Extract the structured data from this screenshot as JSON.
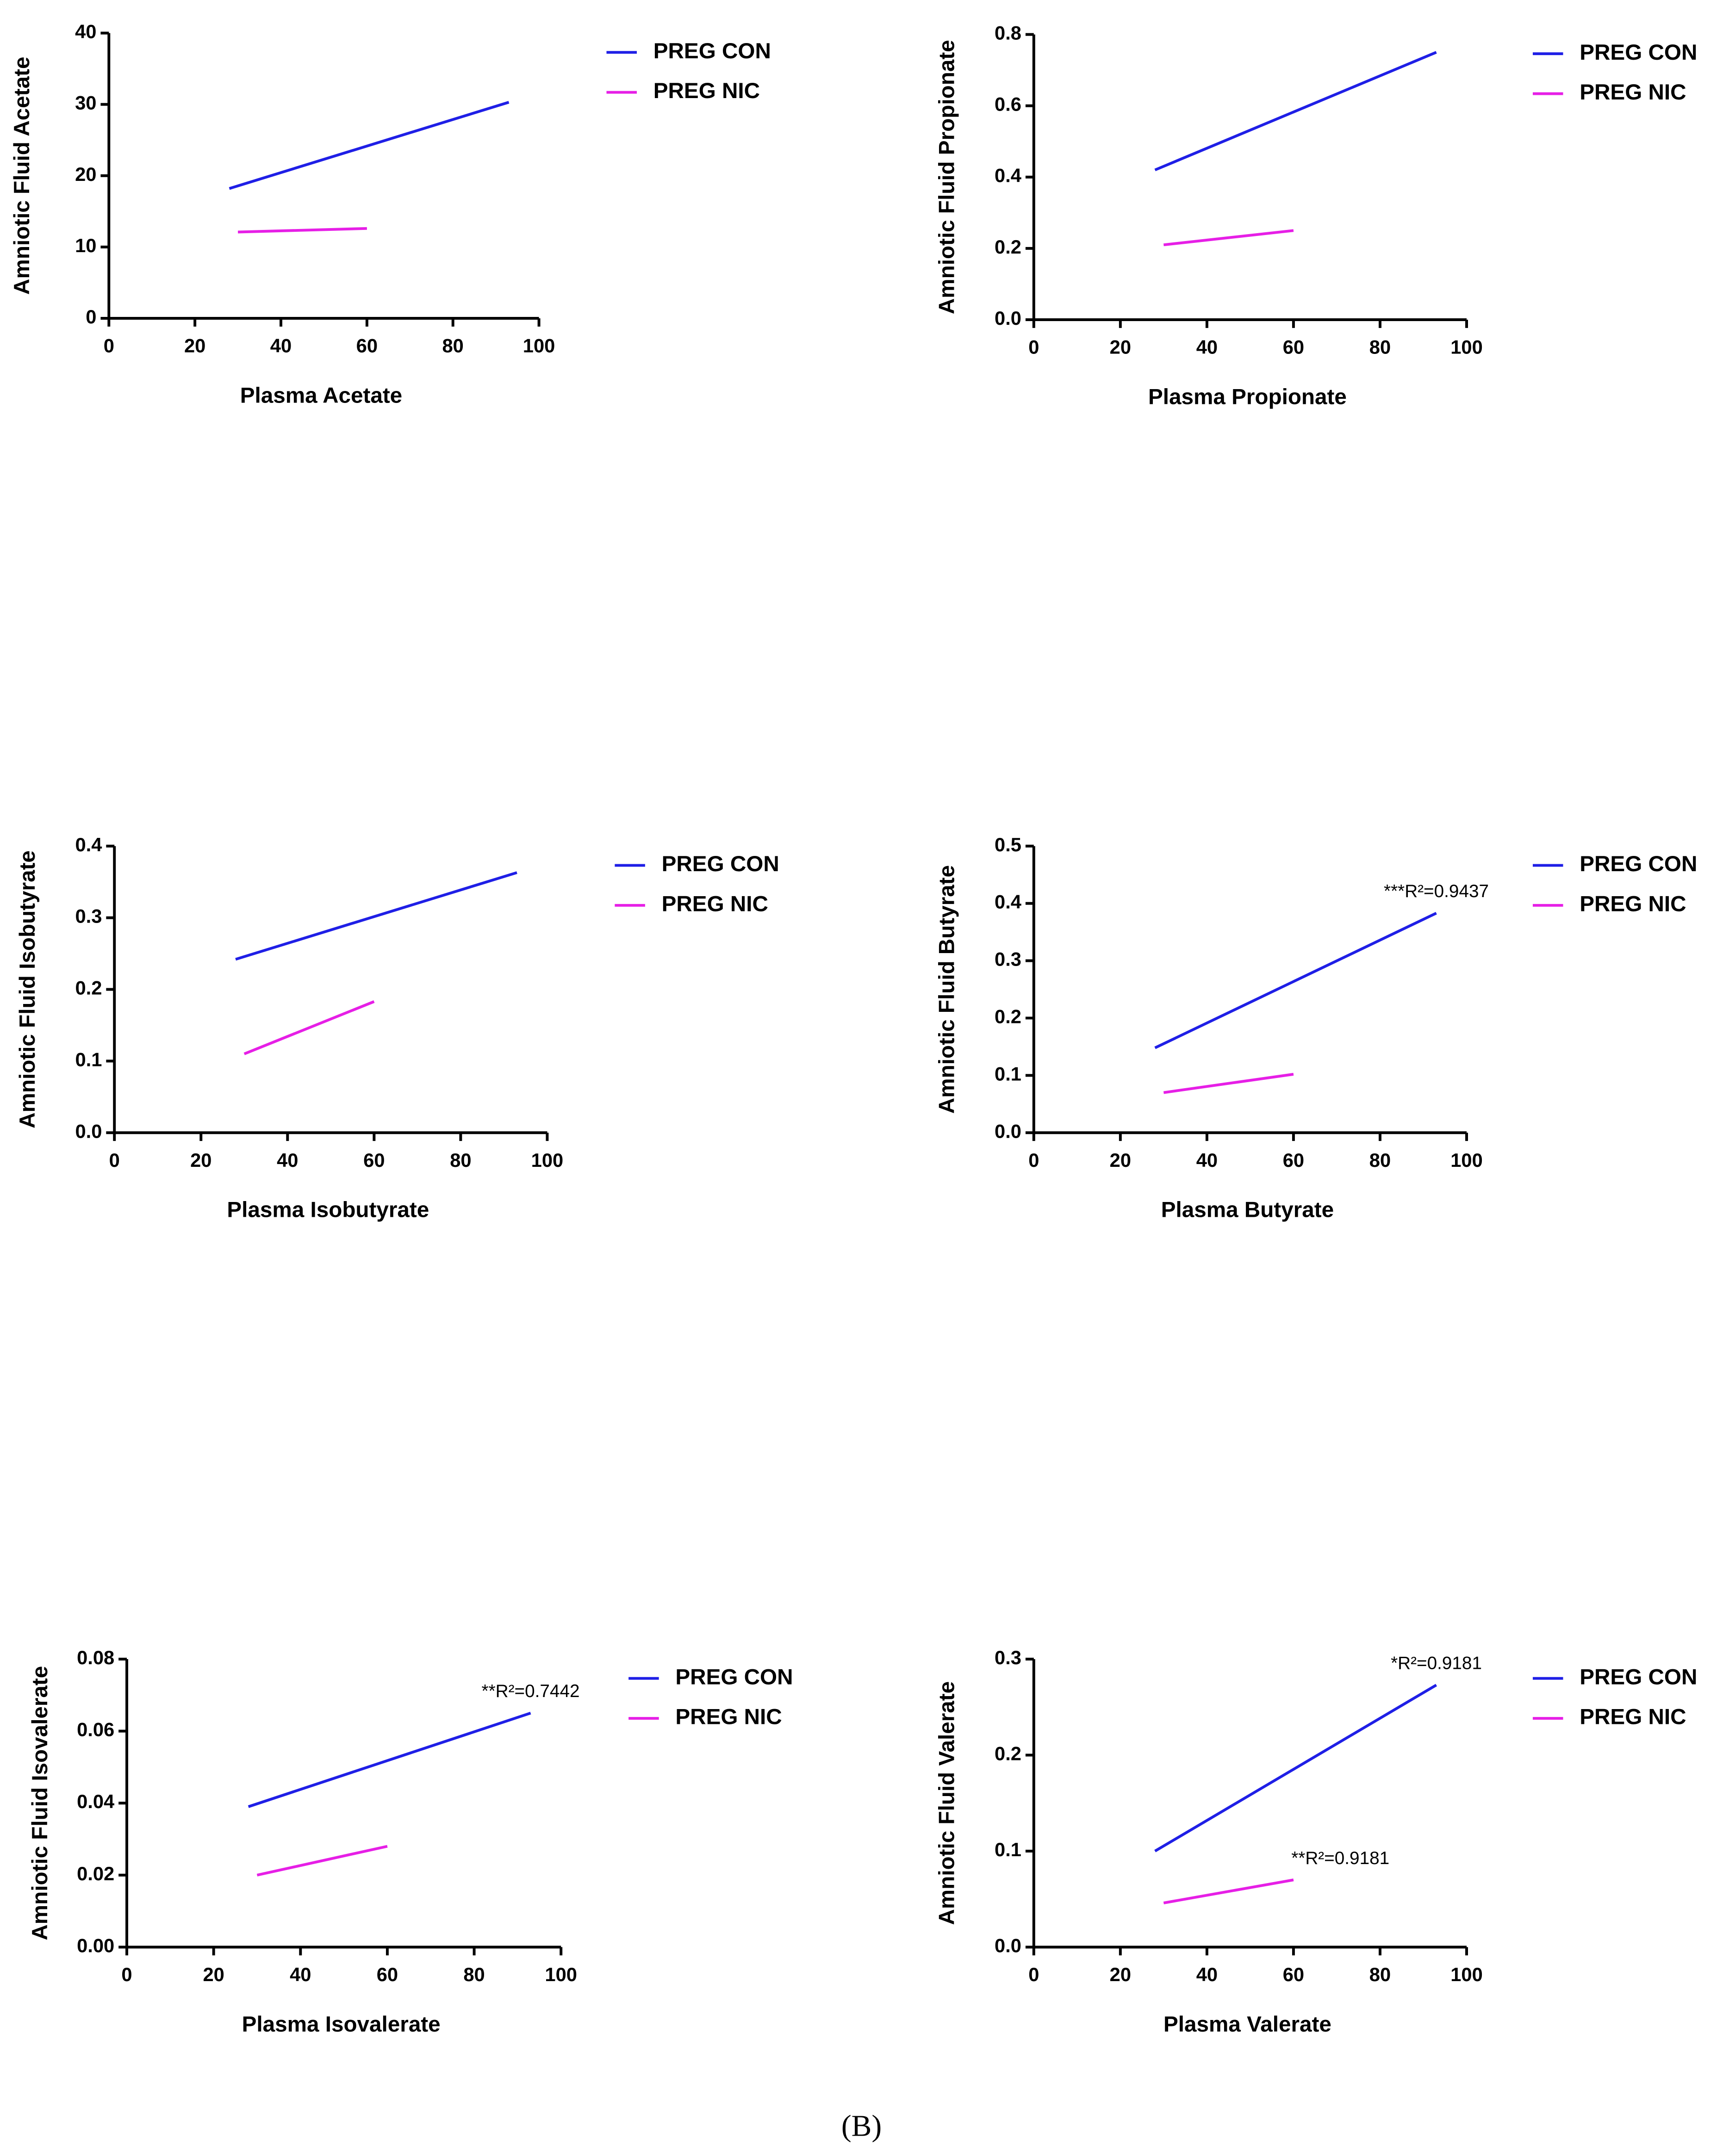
{
  "chart_data": [
    {
      "type": "line",
      "x_label": "Plasma Acetate",
      "y_label": "Amniotic Fluid Acetate",
      "xlim": [
        0,
        100
      ],
      "xticks": [
        0,
        20,
        40,
        60,
        80,
        100
      ],
      "ylim": [
        0,
        40
      ],
      "yticks": [
        0,
        10,
        20,
        30,
        40
      ],
      "series": [
        {
          "name": "PREG CON",
          "color": "#1f1fe6",
          "x": [
            28,
            93
          ],
          "values": [
            18.2,
            30.3
          ]
        },
        {
          "name": "PREG NIC",
          "color": "#e61fe6",
          "x": [
            30,
            60
          ],
          "values": [
            12.1,
            12.6
          ]
        }
      ]
    },
    {
      "type": "line",
      "x_label": "Plasma Propionate",
      "y_label": "Amniotic Fluid Propionate",
      "xlim": [
        0,
        100
      ],
      "xticks": [
        0,
        20,
        40,
        60,
        80,
        100
      ],
      "ylim": [
        0,
        0.8
      ],
      "yticks": [
        {
          "value": 0,
          "label": "0.0"
        },
        0.2,
        0.4,
        0.6,
        0.8
      ],
      "series": [
        {
          "name": "PREG CON",
          "color": "#1f1fe6",
          "x": [
            28,
            93
          ],
          "values": [
            0.42,
            0.75
          ]
        },
        {
          "name": "PREG NIC",
          "color": "#e61fe6",
          "x": [
            30,
            60
          ],
          "values": [
            0.21,
            0.25
          ]
        }
      ]
    },
    {
      "type": "line",
      "x_label": "Plasma Isobutyrate",
      "y_label": "Amniotic Fluid Isobutyrate",
      "xlim": [
        0,
        100
      ],
      "xticks": [
        0,
        20,
        40,
        60,
        80,
        100
      ],
      "ylim": [
        0,
        0.4
      ],
      "yticks": [
        {
          "value": 0,
          "label": "0.0"
        },
        0.1,
        0.2,
        0.3,
        0.4
      ],
      "series": [
        {
          "name": "PREG CON",
          "color": "#1f1fe6",
          "x": [
            28,
            93
          ],
          "values": [
            0.242,
            0.363
          ]
        },
        {
          "name": "PREG NIC",
          "color": "#e61fe6",
          "x": [
            30,
            60
          ],
          "values": [
            0.11,
            0.183
          ]
        }
      ]
    },
    {
      "type": "line",
      "x_label": "Plasma Butyrate",
      "y_label": "Amniotic Fluid Butyrate",
      "xlim": [
        0,
        100
      ],
      "xticks": [
        0,
        20,
        40,
        60,
        80,
        100
      ],
      "ylim": [
        0,
        0.5
      ],
      "yticks": [
        {
          "value": 0,
          "label": "0.0"
        },
        0.1,
        0.2,
        0.3,
        0.4,
        0.5
      ],
      "series": [
        {
          "name": "PREG CON",
          "color": "#1f1fe6",
          "x": [
            28,
            93
          ],
          "values": [
            0.148,
            0.383
          ],
          "annotation": "***R²=0.9437"
        },
        {
          "name": "PREG NIC",
          "color": "#e61fe6",
          "x": [
            30,
            60
          ],
          "values": [
            0.07,
            0.102
          ]
        }
      ]
    },
    {
      "type": "line",
      "x_label": "Plasma Isovalerate",
      "y_label": "Amniotic Fluid Isovalerate",
      "xlim": [
        0,
        100
      ],
      "xticks": [
        0,
        20,
        40,
        60,
        80,
        100
      ],
      "ylim": [
        0,
        0.08
      ],
      "yticks": [
        {
          "value": 0,
          "label": "0.00"
        },
        0.02,
        0.04,
        0.06,
        0.08
      ],
      "series": [
        {
          "name": "PREG CON",
          "color": "#1f1fe6",
          "x": [
            28,
            93
          ],
          "values": [
            0.039,
            0.065
          ],
          "annotation": "**R²=0.7442"
        },
        {
          "name": "PREG NIC",
          "color": "#e61fe6",
          "x": [
            30,
            60
          ],
          "values": [
            0.02,
            0.028
          ]
        }
      ]
    },
    {
      "type": "line",
      "x_label": "Plasma Valerate",
      "y_label": "Amniotic Fluid Valerate",
      "xlim": [
        0,
        100
      ],
      "xticks": [
        0,
        20,
        40,
        60,
        80,
        100
      ],
      "ylim": [
        0,
        0.3
      ],
      "yticks": [
        {
          "value": 0,
          "label": "0.0"
        },
        0.1,
        0.2,
        0.3
      ],
      "series": [
        {
          "name": "PREG CON",
          "color": "#1f1fe6",
          "x": [
            28,
            93
          ],
          "values": [
            0.1,
            0.273
          ],
          "annotation": "*R²=0.9181"
        },
        {
          "name": "PREG NIC",
          "color": "#e61fe6",
          "x": [
            30,
            60
          ],
          "values": [
            0.046,
            0.07
          ],
          "annotation": "**R²=0.9181"
        }
      ]
    }
  ],
  "caption": "(B)"
}
